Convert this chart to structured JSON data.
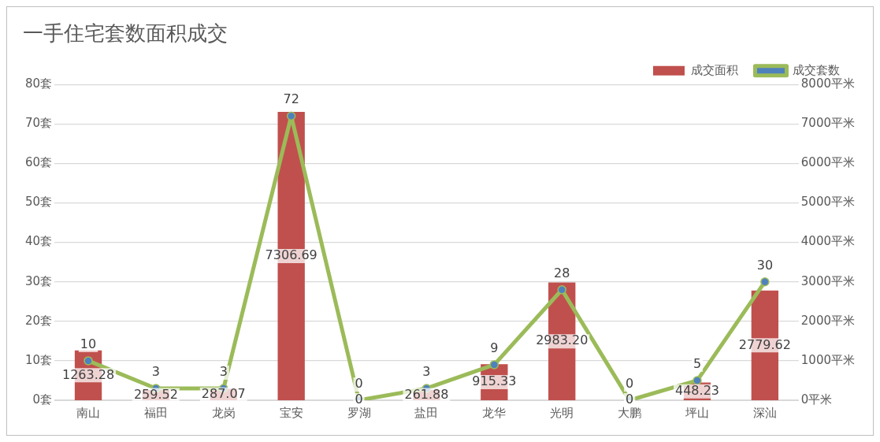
{
  "chart_data": {
    "type": "bar",
    "title": "一手住宅套数面积成交",
    "categories": [
      "南山",
      "福田",
      "龙岗",
      "宝安",
      "罗湖",
      "盐田",
      "龙华",
      "光明",
      "大鹏",
      "坪山",
      "深汕"
    ],
    "series": [
      {
        "name": "成交面积",
        "axis": "y2",
        "color": "#c0504d",
        "values": [
          1263.28,
          259.52,
          287.07,
          7306.69,
          0,
          261.88,
          915.33,
          2983.2,
          0,
          448.23,
          2779.62
        ],
        "value_labels": [
          "1263.28",
          "259.52",
          "287.07",
          "7306.69",
          "0",
          "261.88",
          "915.33",
          "2983.20",
          "0",
          "448.23",
          "2779.62"
        ]
      },
      {
        "name": "成交套数",
        "type": "line",
        "color": "#9bbb59",
        "values": [
          10,
          3,
          3,
          72,
          0,
          3,
          9,
          28,
          0,
          5,
          30
        ],
        "value_labels": [
          "10",
          "3",
          "3",
          "72",
          "0",
          "3",
          "9",
          "28",
          "0",
          "5",
          "30"
        ]
      }
    ],
    "ylim": [
      0,
      80
    ],
    "yticks": [
      {
        "value": 0,
        "label": "0套"
      },
      {
        "value": 10,
        "label": "10套"
      },
      {
        "value": 20,
        "label": "20套"
      },
      {
        "value": 30,
        "label": "30套"
      },
      {
        "value": 40,
        "label": "40套"
      },
      {
        "value": 50,
        "label": "50套"
      },
      {
        "value": 60,
        "label": "60套"
      },
      {
        "value": 70,
        "label": "70套"
      },
      {
        "value": 80,
        "label": "80套"
      }
    ],
    "y2lim": [
      0,
      8000
    ],
    "y2ticks": [
      {
        "value": 0,
        "label": "0平米"
      },
      {
        "value": 1000,
        "label": "1000平米"
      },
      {
        "value": 2000,
        "label": "2000平米"
      },
      {
        "value": 3000,
        "label": "3000平米"
      },
      {
        "value": 4000,
        "label": "4000平米"
      },
      {
        "value": 5000,
        "label": "5000平米"
      },
      {
        "value": 6000,
        "label": "6000平米"
      },
      {
        "value": 7000,
        "label": "7000平米"
      },
      {
        "value": 8000,
        "label": "8000平米"
      }
    ],
    "grid": "y",
    "legend": "top right",
    "marker": "circle"
  }
}
